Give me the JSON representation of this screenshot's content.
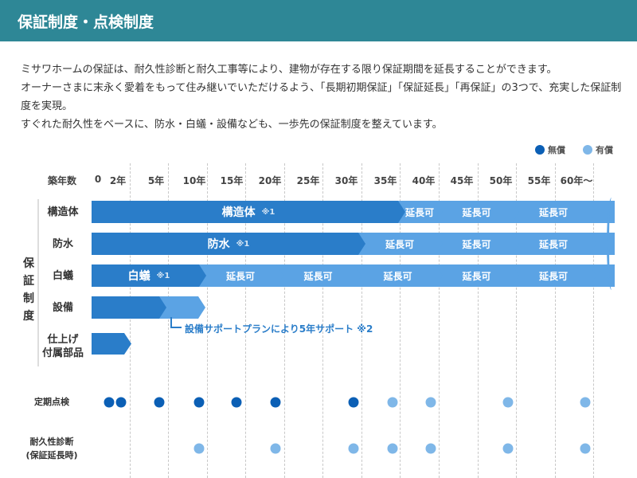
{
  "header": {
    "title": "保証制度・点検制度"
  },
  "intro": [
    "ミサワホームの保証は、耐久性診断と耐久工事等により、建物が存在する限り保証期間を延長することができます。",
    "オーナーさまに末永く愛着をもって住み継いでいただけるよう、「長期初期保証」「保証延長」「再保証」の3つで、充実した保証制度を実現。",
    "すぐれた耐久性をベースに、防水・白蟻・設備なども、一歩先の保証制度を整えています。"
  ],
  "legend": [
    {
      "label": "無償",
      "color": "#0b5fb5"
    },
    {
      "label": "有償",
      "color": "#7fb7e8"
    }
  ],
  "colors": {
    "dark": "#2a7dc9",
    "light": "#5ba3e4",
    "note": "#2a7dc9"
  },
  "axis": {
    "label": "築年数",
    "ticks": [
      "0",
      "2年",
      "5年",
      "10年",
      "15年",
      "20年",
      "25年",
      "30年",
      "35年",
      "40年",
      "45年",
      "50年",
      "55年",
      "60年～"
    ]
  },
  "group_label": "保証制度",
  "rows": [
    {
      "label": "構造体",
      "main": "構造体",
      "note": "※1",
      "ext": [
        "延長可",
        "延長可",
        "延長可"
      ]
    },
    {
      "label": "防水",
      "main": "防水",
      "note": "※1",
      "ext": [
        "延長可",
        "延長可",
        "延長可"
      ]
    },
    {
      "label": "白蟻",
      "main": "白蟻",
      "note": "※1",
      "ext": [
        "延長可",
        "延長可",
        "延長可",
        "延長可",
        "延長可"
      ]
    },
    {
      "label": "設備"
    },
    {
      "label": "仕上げ\n付属部品"
    }
  ],
  "equipment_note": "設備サポートプランにより5年サポート ※2",
  "inspections": [
    {
      "label": "定期点検",
      "free_years": [
        1,
        2,
        5,
        10,
        15,
        20,
        30
      ],
      "paid_years": [
        35,
        40,
        50,
        60
      ]
    },
    {
      "label": "耐久性診断\n(保証延長時)",
      "free_years": [],
      "paid_years": [
        10,
        20,
        30,
        35,
        40,
        50,
        60
      ]
    }
  ]
}
